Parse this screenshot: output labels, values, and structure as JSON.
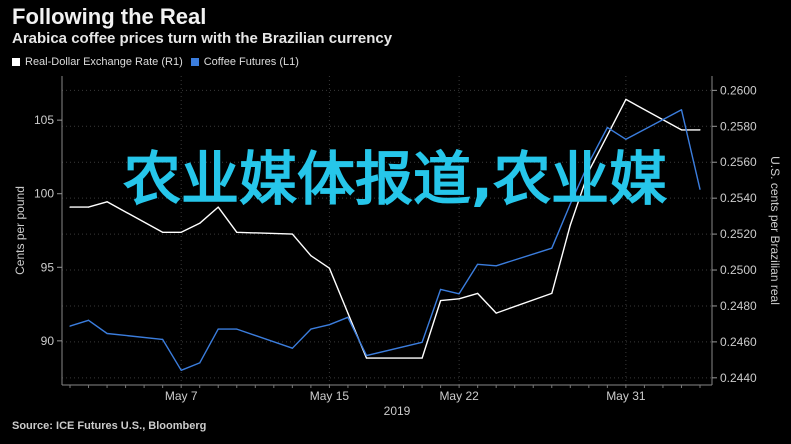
{
  "header": {
    "title": "Following the Real",
    "subtitle": "Arabica coffee prices turn with the Brazilian currency"
  },
  "legend": [
    {
      "label": "Real-Dollar Exchange Rate (R1)",
      "color": "#ffffff"
    },
    {
      "label": "Coffee Futures (L1)",
      "color": "#3b7ddd"
    }
  ],
  "footer": {
    "source": "Source: ICE Futures U.S., Bloomberg"
  },
  "overlay_text": "农业媒体报道,农业媒",
  "colors": {
    "background": "#000000",
    "coffee": "#3b7ddd",
    "real": "#ffffff",
    "overlay": "#26c6ea"
  },
  "chart_data": {
    "type": "line",
    "title": "Following the Real",
    "subtitle": "Arabica coffee prices turn with the Brazilian currency",
    "x": [
      "2019-05-01",
      "2019-05-02",
      "2019-05-03",
      "2019-05-06",
      "2019-05-07",
      "2019-05-08",
      "2019-05-09",
      "2019-05-10",
      "2019-05-13",
      "2019-05-14",
      "2019-05-15",
      "2019-05-16",
      "2019-05-17",
      "2019-05-20",
      "2019-05-21",
      "2019-05-22",
      "2019-05-23",
      "2019-05-24",
      "2019-05-27",
      "2019-05-28",
      "2019-05-29",
      "2019-05-30",
      "2019-05-31",
      "2019-06-03",
      "2019-06-04"
    ],
    "xtick_labels": [
      "May 7",
      "May 15",
      "May 22",
      "May 31"
    ],
    "xtick_dates": [
      "2019-05-07",
      "2019-05-15",
      "2019-05-22",
      "2019-05-31"
    ],
    "xlabel": "2019",
    "left_axis": {
      "label": "Cents per pound",
      "range": [
        87,
        108
      ],
      "ticks": [
        90,
        95,
        100,
        105
      ]
    },
    "right_axis": {
      "label": "U.S. cents per Brazilian real",
      "range": [
        0.2436,
        0.2608
      ],
      "ticks": [
        "0.2440",
        "0.2460",
        "0.2480",
        "0.2500",
        "0.2520",
        "0.2540",
        "0.2560",
        "0.2580",
        "0.2600"
      ]
    },
    "grid": true,
    "legend_position": "top-left",
    "series": [
      {
        "name": "Real-Dollar Exchange Rate (R1)",
        "axis": "right",
        "values": [
          0.2535,
          0.2535,
          0.2538,
          0.2521,
          0.2521,
          0.2526,
          0.2535,
          0.2521,
          0.252,
          0.2508,
          0.2501,
          0.2476,
          0.2451,
          0.2451,
          0.2483,
          0.2484,
          0.2487,
          0.2476,
          0.2487,
          0.2525,
          0.2555,
          0.2575,
          0.2595,
          0.2578,
          0.2578
        ]
      },
      {
        "name": "Coffee Futures (L1)",
        "axis": "left",
        "values": [
          91.0,
          91.4,
          90.5,
          90.1,
          88.0,
          88.5,
          90.8,
          90.8,
          89.5,
          90.8,
          91.1,
          91.6,
          89.0,
          89.9,
          93.5,
          93.2,
          95.2,
          95.1,
          96.3,
          99.3,
          102.1,
          104.5,
          103.7,
          105.7,
          100.3
        ]
      }
    ]
  }
}
